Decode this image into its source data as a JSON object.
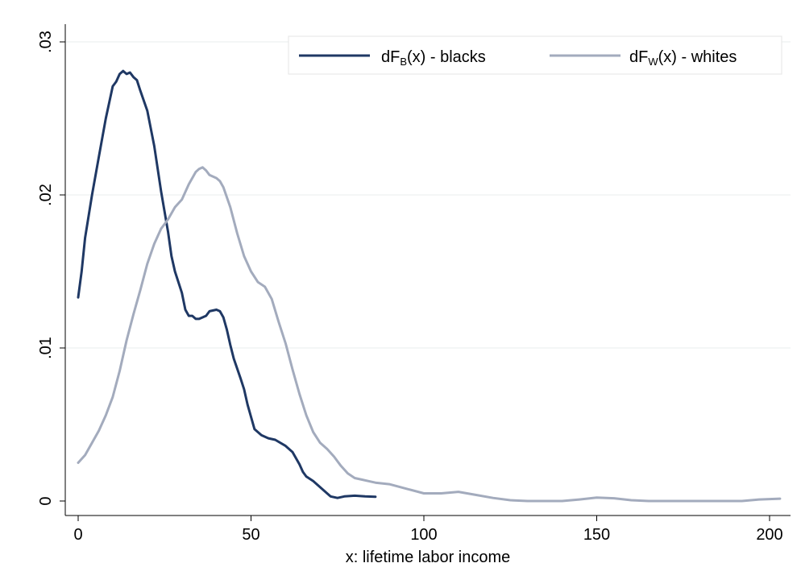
{
  "chart_data": {
    "type": "line",
    "title": "",
    "xlabel": "x: lifetime labor income",
    "ylabel": "",
    "xlim": [
      0,
      203
    ],
    "ylim": [
      0,
      0.03
    ],
    "x_ticks": [
      0,
      50,
      100,
      150,
      200
    ],
    "x_tick_labels": [
      "0",
      "50",
      "100",
      "150",
      "200"
    ],
    "y_ticks": [
      0,
      0.01,
      0.02,
      0.03
    ],
    "y_tick_labels": [
      "0",
      ".01",
      ".02",
      ".03"
    ],
    "grid": "horizontal",
    "legend": {
      "placement": "top-right",
      "entries": [
        {
          "main": "dF",
          "sub": "B",
          "rest": "(x) - blacks"
        },
        {
          "main": "dF",
          "sub": "W",
          "rest": "(x) - whites"
        }
      ]
    },
    "series": [
      {
        "name": "dFB(x) - blacks",
        "color": "#1f3864",
        "points": [
          [
            0,
            0.0133
          ],
          [
            1,
            0.015
          ],
          [
            2,
            0.0172
          ],
          [
            4,
            0.02
          ],
          [
            6,
            0.0225
          ],
          [
            8,
            0.025
          ],
          [
            10,
            0.0271
          ],
          [
            11,
            0.0274
          ],
          [
            12,
            0.0279
          ],
          [
            13,
            0.0281
          ],
          [
            14,
            0.0279
          ],
          [
            15,
            0.028
          ],
          [
            16,
            0.0277
          ],
          [
            17,
            0.0275
          ],
          [
            18,
            0.0268
          ],
          [
            20,
            0.0255
          ],
          [
            22,
            0.0232
          ],
          [
            24,
            0.0202
          ],
          [
            26,
            0.0176
          ],
          [
            27,
            0.016
          ],
          [
            28,
            0.015
          ],
          [
            30,
            0.0136
          ],
          [
            31,
            0.0125
          ],
          [
            32,
            0.0121
          ],
          [
            33,
            0.0121
          ],
          [
            34,
            0.0119
          ],
          [
            35,
            0.0119
          ],
          [
            36,
            0.012
          ],
          [
            37,
            0.0121
          ],
          [
            38,
            0.0124
          ],
          [
            40,
            0.0125
          ],
          [
            41,
            0.0124
          ],
          [
            42,
            0.012
          ],
          [
            43,
            0.0112
          ],
          [
            44,
            0.0102
          ],
          [
            45,
            0.0093
          ],
          [
            47,
            0.008
          ],
          [
            48,
            0.0073
          ],
          [
            49,
            0.0063
          ],
          [
            50,
            0.0055
          ],
          [
            51,
            0.0047
          ],
          [
            52,
            0.0045
          ],
          [
            53,
            0.0043
          ],
          [
            55,
            0.0041
          ],
          [
            57,
            0.004
          ],
          [
            60,
            0.0036
          ],
          [
            62,
            0.0032
          ],
          [
            64,
            0.0024
          ],
          [
            65,
            0.0019
          ],
          [
            66,
            0.0016
          ],
          [
            68,
            0.0013
          ],
          [
            70,
            0.0009
          ],
          [
            72,
            0.0005
          ],
          [
            73,
            0.0003
          ],
          [
            75,
            0.0002
          ],
          [
            77,
            0.0003
          ],
          [
            80,
            0.00035
          ],
          [
            83,
            0.0003
          ],
          [
            86,
            0.00028
          ]
        ]
      },
      {
        "name": "dFW(x) - whites",
        "color": "#a3abbd",
        "points": [
          [
            0,
            0.0025
          ],
          [
            2,
            0.003
          ],
          [
            4,
            0.0038
          ],
          [
            6,
            0.0046
          ],
          [
            8,
            0.0056
          ],
          [
            10,
            0.0068
          ],
          [
            12,
            0.0085
          ],
          [
            14,
            0.0105
          ],
          [
            16,
            0.0122
          ],
          [
            18,
            0.0138
          ],
          [
            20,
            0.0155
          ],
          [
            22,
            0.0168
          ],
          [
            24,
            0.0178
          ],
          [
            26,
            0.0184
          ],
          [
            28,
            0.0192
          ],
          [
            30,
            0.0197
          ],
          [
            32,
            0.0207
          ],
          [
            34,
            0.0215
          ],
          [
            35,
            0.0217
          ],
          [
            36,
            0.0218
          ],
          [
            37,
            0.0216
          ],
          [
            38,
            0.0213
          ],
          [
            40,
            0.0211
          ],
          [
            41,
            0.0209
          ],
          [
            42,
            0.0205
          ],
          [
            44,
            0.0192
          ],
          [
            46,
            0.0175
          ],
          [
            48,
            0.016
          ],
          [
            50,
            0.015
          ],
          [
            52,
            0.0143
          ],
          [
            54,
            0.014
          ],
          [
            56,
            0.0132
          ],
          [
            58,
            0.0117
          ],
          [
            60,
            0.0103
          ],
          [
            62,
            0.0086
          ],
          [
            64,
            0.007
          ],
          [
            66,
            0.0056
          ],
          [
            68,
            0.0045
          ],
          [
            70,
            0.0038
          ],
          [
            72,
            0.0034
          ],
          [
            74,
            0.0029
          ],
          [
            76,
            0.0023
          ],
          [
            78,
            0.0018
          ],
          [
            80,
            0.0015
          ],
          [
            82,
            0.0014
          ],
          [
            84,
            0.0013
          ],
          [
            86,
            0.0012
          ],
          [
            90,
            0.0011
          ],
          [
            95,
            0.0008
          ],
          [
            100,
            0.0005
          ],
          [
            105,
            0.0005
          ],
          [
            110,
            0.0006
          ],
          [
            115,
            0.0004
          ],
          [
            120,
            0.0002
          ],
          [
            125,
            5e-05
          ],
          [
            130,
            0.0
          ],
          [
            140,
            0.0
          ],
          [
            145,
            0.0001
          ],
          [
            150,
            0.00022
          ],
          [
            155,
            0.00018
          ],
          [
            160,
            5e-05
          ],
          [
            165,
            0.0
          ],
          [
            175,
            0.0
          ],
          [
            185,
            0.0
          ],
          [
            192,
            0.0
          ],
          [
            197,
            0.0001
          ],
          [
            203,
            0.00015
          ]
        ]
      }
    ]
  }
}
